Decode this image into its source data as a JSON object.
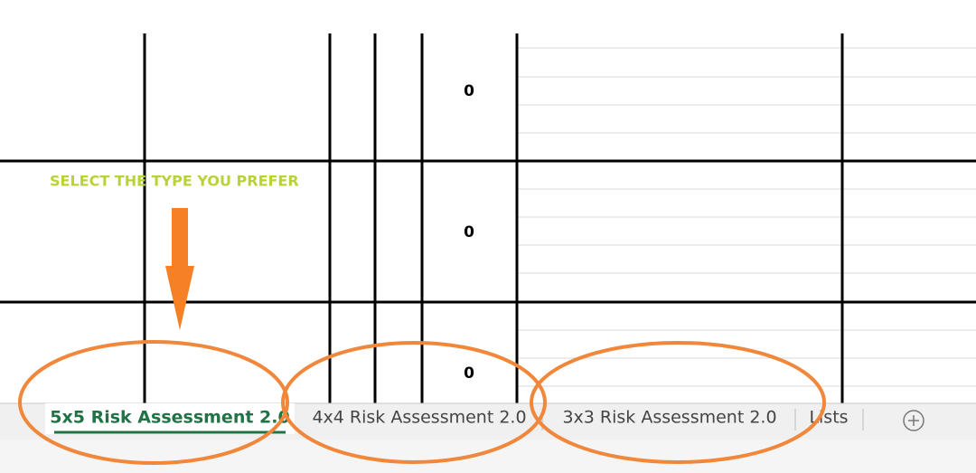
{
  "sheet": {
    "cells": [
      0,
      0,
      0
    ],
    "annotation": "SELECT THE TYPE YOU PREFER"
  },
  "tabs": [
    "5x5 Risk Assessment 2.0",
    "4x4 Risk Assessment 2.0",
    "3x3 Risk Assessment 2.0",
    "Lists"
  ]
}
